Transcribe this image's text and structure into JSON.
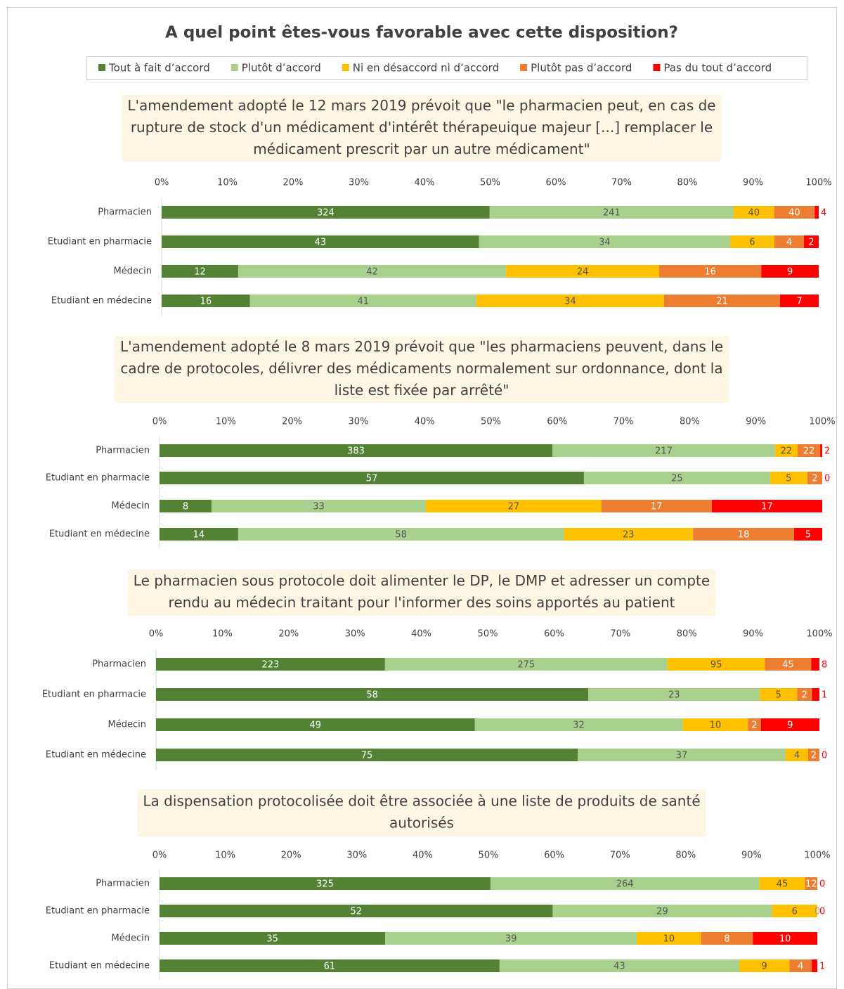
{
  "title": "A quel point êtes-vous favorable avec cette disposition?",
  "legend": {
    "items": [
      {
        "name": "Tout à fait d’accord",
        "color": "#548235"
      },
      {
        "name": "Plutôt d’accord",
        "color": "#a9d18e"
      },
      {
        "name": "Ni en désaccord ni d’accord",
        "color": "#ffc000"
      },
      {
        "name": "Plutôt pas d’accord",
        "color": "#ed7d31"
      },
      {
        "name": "Pas du tout d’accord",
        "color": "#ff0000"
      }
    ]
  },
  "chart_data": [
    {
      "type": "bar",
      "orientation": "horizontal",
      "stacking": "percent",
      "subtitle": [
        "L'amendement adopté le 12 mars 2019 prévoit que \"le pharmacien peut, en cas de",
        "rupture de stock d'un médicament d'intérêt thérapeuique majeur [...] remplacer le",
        "médicament prescrit par un autre médicament\""
      ],
      "categories": [
        "Pharmacien",
        "Etudiant en pharmacie",
        "Médecin",
        "Etudiant en médecine"
      ],
      "series": [
        {
          "values": [
            324,
            43,
            12,
            16
          ]
        },
        {
          "values": [
            241,
            34,
            42,
            41
          ]
        },
        {
          "values": [
            40,
            6,
            24,
            34
          ]
        },
        {
          "values": [
            40,
            4,
            16,
            21
          ]
        },
        {
          "values": [
            4,
            2,
            9,
            7
          ]
        }
      ],
      "xlim": [
        0,
        100
      ],
      "xticks": [
        {
          "value": 0,
          "label": "0%"
        },
        {
          "value": 10,
          "label": "10%"
        },
        {
          "value": 20,
          "label": "20%"
        },
        {
          "value": 30,
          "label": "30%"
        },
        {
          "value": 40,
          "label": "40%"
        },
        {
          "value": 50,
          "label": "50%"
        },
        {
          "value": 60,
          "label": "60%"
        },
        {
          "value": 70,
          "label": "70%"
        },
        {
          "value": 80,
          "label": "80%"
        },
        {
          "value": 90,
          "label": "90%"
        },
        {
          "value": 100,
          "label": "100%"
        }
      ]
    },
    {
      "type": "bar",
      "orientation": "horizontal",
      "stacking": "percent",
      "subtitle": [
        "L'amendement adopté le 8 mars 2019 prévoit que \"les pharmaciens peuvent, dans le",
        "cadre de protocoles, délivrer des médicaments normalement sur ordonnance, dont la",
        "liste est fixée par arrêté\""
      ],
      "categories": [
        "Pharmacien",
        "Etudiant en pharmacie",
        "Médecin",
        "Etudiant en médecine"
      ],
      "series": [
        {
          "values": [
            383,
            57,
            8,
            14
          ]
        },
        {
          "values": [
            217,
            25,
            33,
            58
          ]
        },
        {
          "values": [
            22,
            5,
            27,
            23
          ]
        },
        {
          "values": [
            22,
            2,
            17,
            18
          ]
        },
        {
          "values": [
            2,
            0,
            17,
            5
          ]
        }
      ],
      "xlim": [
        0,
        100
      ],
      "xticks": [
        {
          "value": 0,
          "label": "0%"
        },
        {
          "value": 10,
          "label": "10%"
        },
        {
          "value": 20,
          "label": "20%"
        },
        {
          "value": 30,
          "label": "30%"
        },
        {
          "value": 40,
          "label": "40%"
        },
        {
          "value": 50,
          "label": "50%"
        },
        {
          "value": 60,
          "label": "60%"
        },
        {
          "value": 70,
          "label": "70%"
        },
        {
          "value": 80,
          "label": "80%"
        },
        {
          "value": 90,
          "label": "90%"
        },
        {
          "value": 100,
          "label": "100%"
        }
      ]
    },
    {
      "type": "bar",
      "orientation": "horizontal",
      "stacking": "percent",
      "subtitle": [
        "Le pharmacien sous protocole doit alimenter le DP, le DMP et adresser un compte",
        "rendu au médecin traitant pour l'informer des soins apportés au patient"
      ],
      "categories": [
        "Pharmacien",
        "Etudiant en pharmacie",
        "Médecin",
        "Etudiant en médecine"
      ],
      "series": [
        {
          "values": [
            223,
            58,
            49,
            75
          ]
        },
        {
          "values": [
            275,
            23,
            32,
            37
          ]
        },
        {
          "values": [
            95,
            5,
            10,
            4
          ]
        },
        {
          "values": [
            45,
            2,
            2,
            2
          ]
        },
        {
          "values": [
            8,
            1,
            9,
            0
          ]
        }
      ],
      "xlim": [
        0,
        100
      ],
      "xticks": [
        {
          "value": 0,
          "label": "0%"
        },
        {
          "value": 10,
          "label": "10%"
        },
        {
          "value": 20,
          "label": "20%"
        },
        {
          "value": 30,
          "label": "30%"
        },
        {
          "value": 40,
          "label": "40%"
        },
        {
          "value": 50,
          "label": "50%"
        },
        {
          "value": 60,
          "label": "60%"
        },
        {
          "value": 70,
          "label": "70%"
        },
        {
          "value": 80,
          "label": "80%"
        },
        {
          "value": 90,
          "label": "90%"
        },
        {
          "value": 100,
          "label": "100%"
        }
      ]
    },
    {
      "type": "bar",
      "orientation": "horizontal",
      "stacking": "percent",
      "subtitle": [
        "La dispensation protocolisée doit être associée à une liste de produits de santé",
        "autorisés"
      ],
      "categories": [
        "Pharmacien",
        "Etudiant en pharmacie",
        "Médecin",
        "Etudiant en médecine"
      ],
      "series": [
        {
          "values": [
            325,
            52,
            35,
            61
          ]
        },
        {
          "values": [
            264,
            29,
            39,
            43
          ]
        },
        {
          "values": [
            45,
            6,
            10,
            9
          ]
        },
        {
          "values": [
            12,
            0,
            8,
            4
          ]
        },
        {
          "values": [
            0,
            0,
            10,
            1
          ]
        }
      ],
      "xlim": [
        0,
        100
      ],
      "xticks": [
        {
          "value": 0,
          "label": "0%"
        },
        {
          "value": 10,
          "label": "10%"
        },
        {
          "value": 20,
          "label": "20%"
        },
        {
          "value": 30,
          "label": "30%"
        },
        {
          "value": 40,
          "label": "40%"
        },
        {
          "value": 50,
          "label": "50%"
        },
        {
          "value": 60,
          "label": "60%"
        },
        {
          "value": 70,
          "label": "70%"
        },
        {
          "value": 80,
          "label": "80%"
        },
        {
          "value": 90,
          "label": "90%"
        },
        {
          "value": 100,
          "label": "100%"
        }
      ]
    }
  ]
}
